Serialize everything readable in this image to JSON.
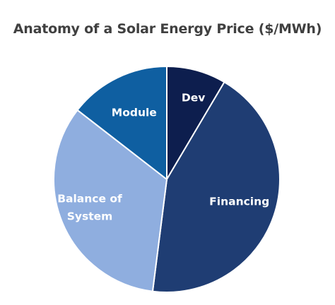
{
  "chart_data": {
    "type": "pie",
    "title": "Anatomy of a Solar Energy Price ($/MWh)",
    "categories": [
      "Dev",
      "Financing",
      "Balance of System",
      "Module"
    ],
    "values": [
      8.5,
      43.5,
      33.5,
      14.5
    ],
    "value_unit": "percent of total (estimated)",
    "start_angle_deg": 0,
    "direction": "clockwise",
    "colors": [
      "#0d1e4e",
      "#1f3d73",
      "#8faedf",
      "#0f5fa1"
    ],
    "labels": [
      "Dev",
      "Financing",
      "Balance of\nSystem",
      "Module"
    ],
    "legend": "none"
  }
}
